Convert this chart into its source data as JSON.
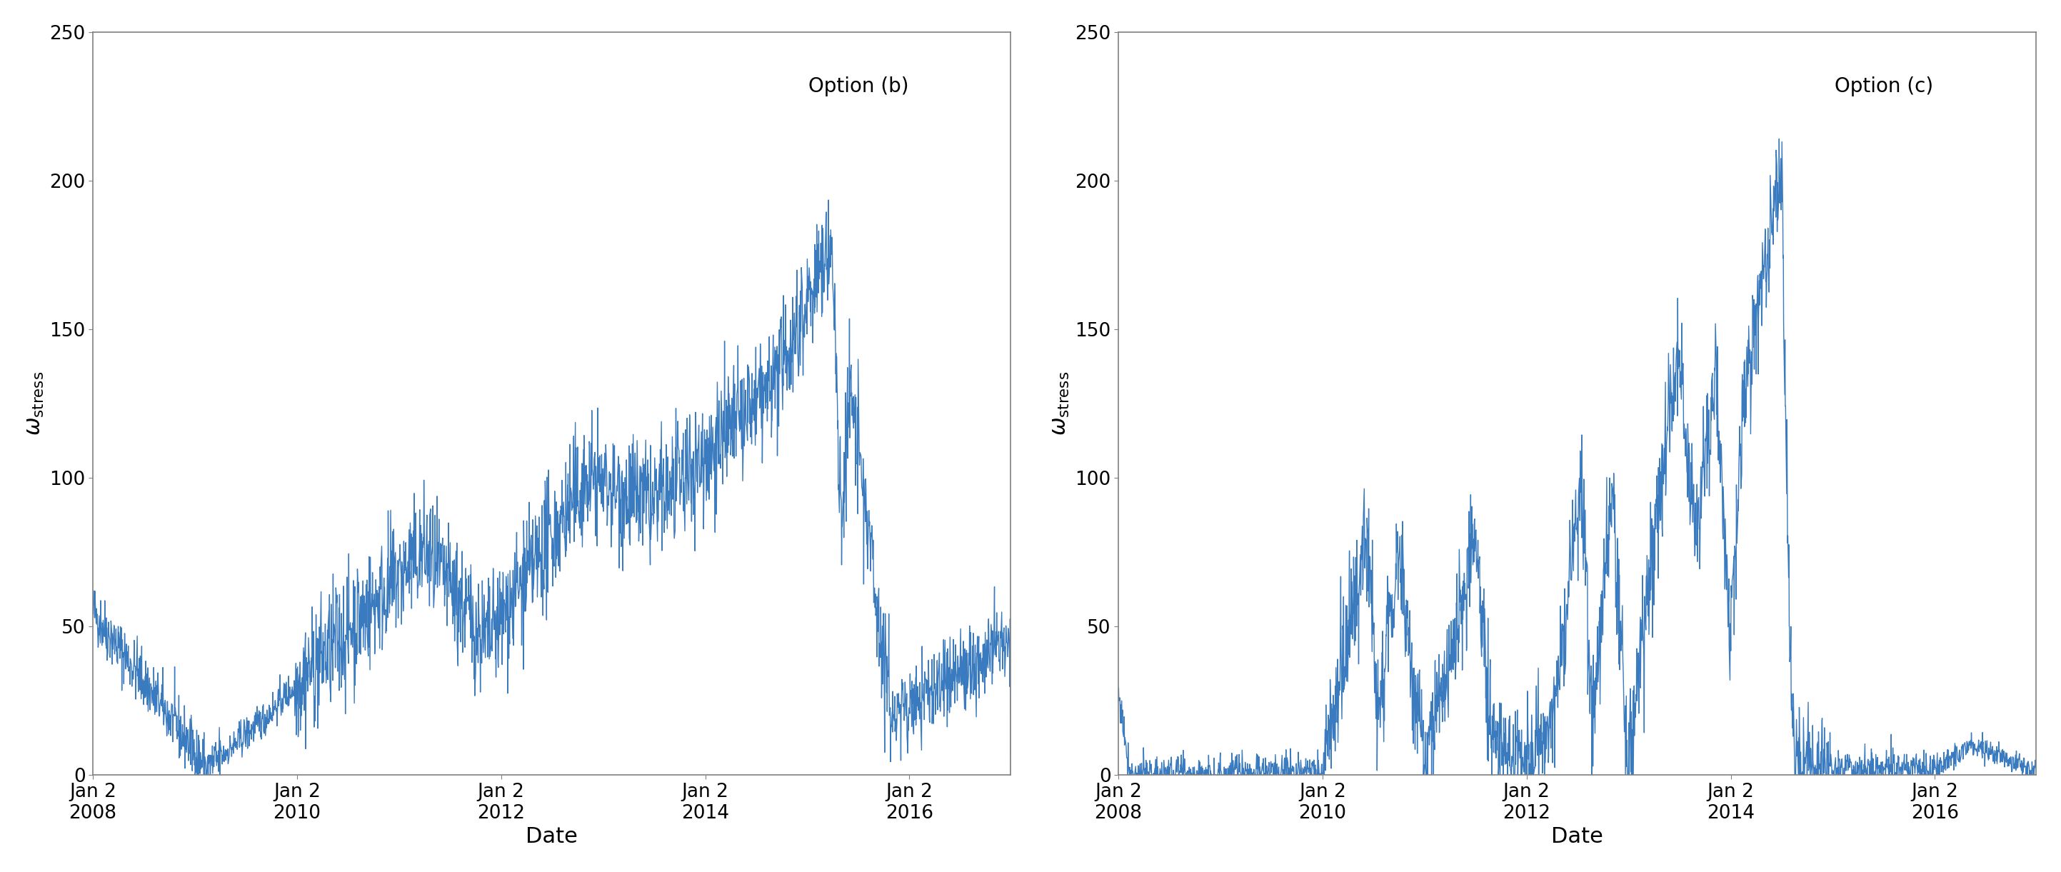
{
  "title_b": "Option (b)",
  "title_c": "Option (c)",
  "xlabel": "Date",
  "ylim": [
    0,
    250
  ],
  "yticks": [
    0,
    50,
    100,
    150,
    200,
    250
  ],
  "line_color": "#3a7abf",
  "line_width": 1.0,
  "bg_color": "#ffffff",
  "fig_width": 28.86,
  "fig_height": 12.21,
  "title_fontsize": 20,
  "label_fontsize": 22,
  "tick_fontsize": 19
}
